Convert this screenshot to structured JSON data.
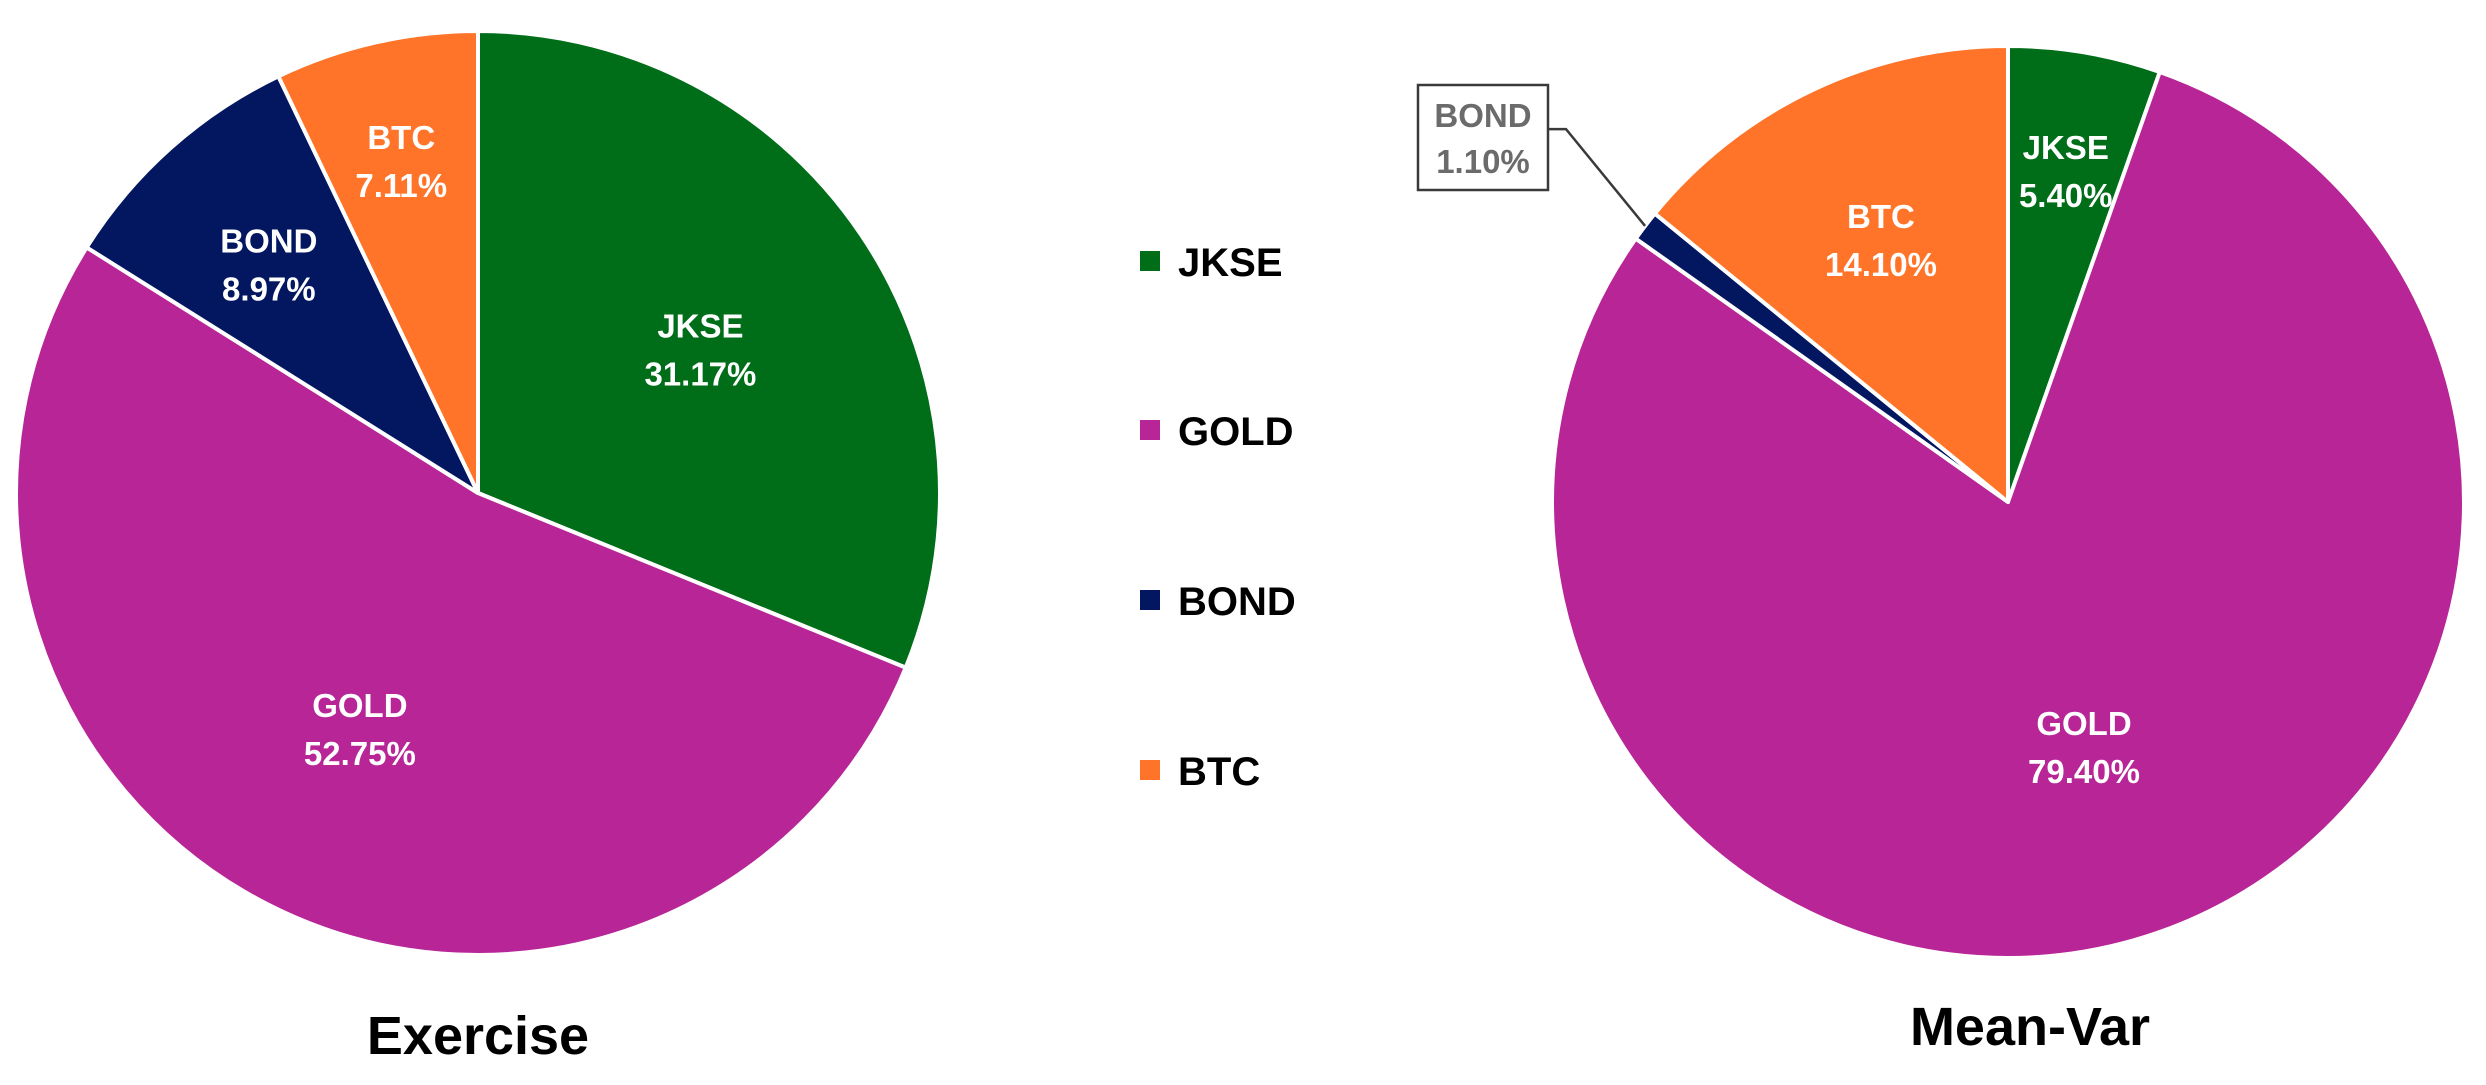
{
  "legend": {
    "items": [
      {
        "label": "JKSE",
        "color": "#006d18"
      },
      {
        "label": "GOLD",
        "color": "#b72596"
      },
      {
        "label": "BOND",
        "color": "#031760"
      },
      {
        "label": "BTC",
        "color": "#ff7428"
      }
    ]
  },
  "chart_data": [
    {
      "type": "pie",
      "title": "Exercise",
      "start": "12 o'clock, clockwise",
      "slices": [
        {
          "label": "JKSE",
          "value": 31.17,
          "display": "31.17%",
          "color": "#006d18"
        },
        {
          "label": "GOLD",
          "value": 52.75,
          "display": "52.75%",
          "color": "#b72596"
        },
        {
          "label": "BOND",
          "value": 8.97,
          "display": "8.97%",
          "color": "#031760"
        },
        {
          "label": "BTC",
          "value": 7.11,
          "display": "7.11%",
          "color": "#ff7428"
        }
      ]
    },
    {
      "type": "pie",
      "title": "Mean-Var",
      "start": "12 o'clock, clockwise",
      "slices": [
        {
          "label": "JKSE",
          "value": 5.4,
          "display": "5.40%",
          "color": "#006d18"
        },
        {
          "label": "GOLD",
          "value": 79.4,
          "display": "79.40%",
          "color": "#b72596"
        },
        {
          "label": "BOND",
          "value": 1.1,
          "display": "1.10%",
          "color": "#031760"
        },
        {
          "label": "BTC",
          "value": 14.1,
          "display": "14.10%",
          "color": "#ff7428"
        }
      ]
    }
  ]
}
